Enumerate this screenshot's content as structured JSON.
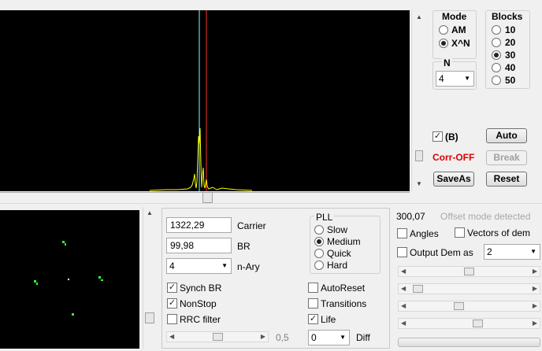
{
  "mode": {
    "title": "Mode",
    "options": [
      "AM",
      "X^N"
    ],
    "selected": 1
  },
  "blocks": {
    "title": "Blocks",
    "options": [
      "10",
      "20",
      "30",
      "40",
      "50"
    ],
    "selected": 2
  },
  "n": {
    "title": "N",
    "value": "4"
  },
  "b_check": {
    "label": "(B)",
    "checked": true
  },
  "corr_label": "Corr-OFF",
  "buttons": {
    "auto": "Auto",
    "break": "Break",
    "saveas": "SaveAs",
    "reset": "Reset"
  },
  "carrier": {
    "value": "1322,29",
    "label": "Carrier"
  },
  "br": {
    "value": "99,98",
    "label": "BR"
  },
  "nary": {
    "value": "4",
    "label": "n-Ary"
  },
  "pll": {
    "title": "PLL",
    "options": [
      "Slow",
      "Medium",
      "Quick",
      "Hard"
    ],
    "selected": 1
  },
  "checks_left": [
    {
      "label": "Synch BR",
      "checked": true
    },
    {
      "label": "NonStop",
      "checked": true
    },
    {
      "label": "RRC filter",
      "checked": false
    }
  ],
  "checks_mid": [
    {
      "label": "AutoReset",
      "checked": false
    },
    {
      "label": "Transitions",
      "checked": false
    },
    {
      "label": "Life",
      "checked": true
    }
  ],
  "slider_value": "0,5",
  "diff": {
    "value": "0",
    "label": "Diff"
  },
  "offset": {
    "value": "300,07",
    "status": "Offset mode detected"
  },
  "angles": {
    "label": "Angles",
    "checked": false
  },
  "vectors": {
    "label": "Vectors of dem",
    "checked": false
  },
  "output_dem": {
    "label": "Output Dem as",
    "checked": false,
    "value": "2"
  },
  "colors": {
    "carrier_line": "#7fffff",
    "marker_red": "#ff3030",
    "spectrum": "#ffff00",
    "points": "#33ff33",
    "corr_off": "#e00000"
  }
}
